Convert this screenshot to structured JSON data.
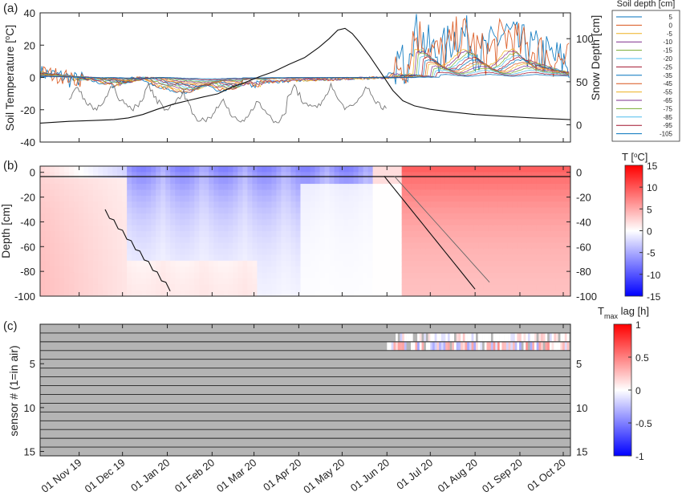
{
  "chart_data": [
    {
      "type": "line",
      "panel_label": "(a)",
      "ylabel": "Soil Temperature [°C]",
      "ylabel_parts": {
        "pre": "Soil Temperature [",
        "sup": "o",
        "post": "C]"
      },
      "ylim": [
        -40,
        40
      ],
      "yticks": [
        -40,
        -20,
        0,
        20,
        40
      ],
      "y2label": "Snow Depth [cm]",
      "y2lim": [
        -20,
        130
      ],
      "y2ticks": [
        0,
        50,
        100
      ],
      "legend_title": "Soil depth [cm]",
      "legend_position": "right",
      "series": [
        {
          "name": "5",
          "color": "#0072bd"
        },
        {
          "name": "0",
          "color": "#d95319"
        },
        {
          "name": "-5",
          "color": "#edb120"
        },
        {
          "name": "-10",
          "color": "#7e2f8e"
        },
        {
          "name": "-15",
          "color": "#77ac30"
        },
        {
          "name": "-20",
          "color": "#4dbeee"
        },
        {
          "name": "-25",
          "color": "#a2142f"
        },
        {
          "name": "-35",
          "color": "#0072bd"
        },
        {
          "name": "-45",
          "color": "#d95319"
        },
        {
          "name": "-55",
          "color": "#edb120"
        },
        {
          "name": "-65",
          "color": "#7e2f8e"
        },
        {
          "name": "-75",
          "color": "#77ac30"
        },
        {
          "name": "-85",
          "color": "#4dbeee"
        },
        {
          "name": "-95",
          "color": "#a2142f"
        },
        {
          "name": "-105",
          "color": "#0072bd"
        }
      ],
      "snow_depth_cm": {
        "x": [
          "2019-10-05",
          "2019-10-25",
          "2019-11-10",
          "2019-11-25",
          "2019-12-05",
          "2019-12-15",
          "2019-12-25",
          "2020-01-05",
          "2020-01-15",
          "2020-01-25",
          "2020-02-05",
          "2020-02-15",
          "2020-02-25",
          "2020-03-05",
          "2020-03-15",
          "2020-03-25",
          "2020-04-05",
          "2020-04-15",
          "2020-04-22",
          "2020-04-28",
          "2020-05-03",
          "2020-05-08",
          "2020-05-13",
          "2020-05-20",
          "2020-05-28",
          "2020-06-05",
          "2020-06-12",
          "2020-06-20",
          "2020-07-01",
          "2020-07-15",
          "2020-08-01",
          "2020-08-20",
          "2020-09-10",
          "2020-10-06"
        ],
        "y": [
          2,
          4,
          5,
          6,
          8,
          12,
          18,
          24,
          28,
          32,
          36,
          44,
          50,
          56,
          62,
          70,
          78,
          90,
          100,
          110,
          112,
          106,
          96,
          80,
          60,
          40,
          28,
          22,
          18,
          15,
          12,
          10,
          8,
          6
        ]
      }
    },
    {
      "type": "heatmap",
      "panel_label": "(b)",
      "ylabel": "Depth [cm]",
      "ylim": [
        -100,
        5
      ],
      "yticks": [
        0,
        -20,
        -40,
        -60,
        -80,
        -100
      ],
      "colorbar_title": "T [°C]",
      "colorbar_parts": {
        "pre": "T [",
        "sup": "o",
        "post": "C]"
      },
      "colorbar_range": [
        -15,
        15
      ],
      "colorbar_ticks": [
        15,
        10,
        5,
        0,
        -5,
        -10,
        -15
      ],
      "colormap": [
        "#0000ff",
        "#ffffff",
        "#ff0000"
      ]
    },
    {
      "type": "heatmap",
      "panel_label": "(c)",
      "ylabel": "sensor # (1=in air)",
      "ylim": [
        0,
        15
      ],
      "yticks": [
        5,
        10,
        15
      ],
      "colorbar_title": "T max lag [h]",
      "colorbar_parts": {
        "pre": "T",
        "sub": "max",
        "post": " lag [h]"
      },
      "colorbar_range": [
        -1,
        1
      ],
      "colorbar_ticks": [
        1,
        0.5,
        0,
        -0.5,
        -1
      ],
      "nodata_color": "#b4b4b4"
    }
  ],
  "x_axis": {
    "start": "2019-10-05",
    "end": "2020-10-06",
    "tick_dates": [
      "2019-11-01",
      "2019-12-01",
      "2020-01-01",
      "2020-02-01",
      "2020-03-01",
      "2020-04-01",
      "2020-05-01",
      "2020-06-01",
      "2020-07-01",
      "2020-08-01",
      "2020-09-01",
      "2020-10-01"
    ],
    "tick_labels": [
      "01 Nov 19",
      "01 Dec 19",
      "01 Jan 20",
      "01 Feb 20",
      "01 Mar 20",
      "01 Apr 20",
      "01 May 20",
      "01 Jun 20",
      "01 Jul 20",
      "01 Aug 20",
      "01 Sep 20",
      "01 Oct 20"
    ]
  }
}
